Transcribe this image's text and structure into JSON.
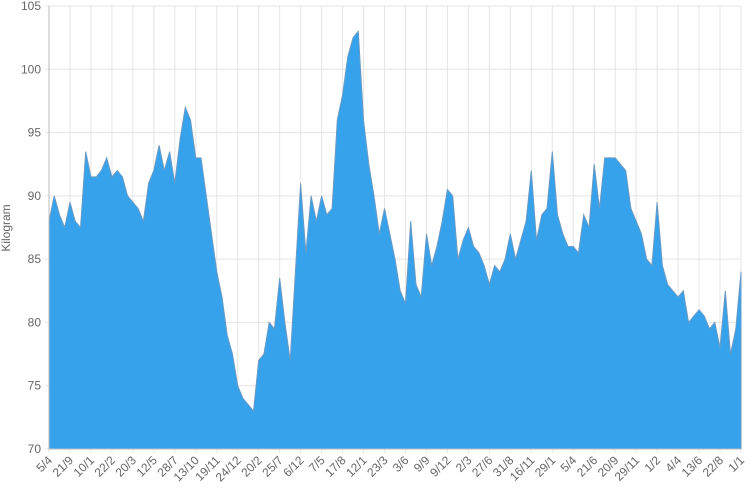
{
  "chart_data": {
    "type": "area",
    "y_label": "Kilogram",
    "categories": [
      "5/4",
      null,
      null,
      null,
      "21/9",
      null,
      null,
      null,
      "10/1",
      null,
      null,
      null,
      "22/2",
      null,
      null,
      null,
      "20/3",
      null,
      null,
      null,
      "12/5",
      null,
      null,
      null,
      "28/7",
      null,
      null,
      null,
      "13/10",
      null,
      null,
      null,
      "19/11",
      null,
      null,
      null,
      "24/12",
      null,
      null,
      null,
      "20/2",
      null,
      null,
      null,
      "25/7",
      null,
      null,
      null,
      "6/12",
      null,
      null,
      null,
      "7/5",
      null,
      null,
      null,
      "17/8",
      null,
      null,
      null,
      "12/1",
      null,
      null,
      null,
      "23/3",
      null,
      null,
      null,
      "3/6",
      null,
      null,
      null,
      "9/9",
      null,
      null,
      null,
      "9/12",
      null,
      null,
      null,
      "2/3",
      null,
      null,
      null,
      "27/6",
      null,
      null,
      null,
      "31/8",
      null,
      null,
      null,
      "16/11",
      null,
      null,
      null,
      "29/1",
      null,
      null,
      null,
      "5/4",
      null,
      null,
      null,
      "21/6",
      null,
      null,
      null,
      "20/9",
      null,
      null,
      null,
      "29/11",
      null,
      null,
      null,
      "1/2",
      null,
      null,
      null,
      "4/4",
      null,
      null,
      null,
      "13/6",
      null,
      null,
      null,
      "22/8",
      null,
      null,
      null,
      "1/1"
    ],
    "values": [
      88,
      90,
      88.5,
      87.5,
      89.5,
      88,
      87.5,
      93.5,
      91.5,
      91.5,
      92,
      93,
      91.5,
      92,
      91.5,
      90,
      89.5,
      89,
      88,
      91,
      92,
      94,
      92,
      93.5,
      91,
      94.5,
      97,
      96,
      93,
      93,
      90,
      87,
      84,
      82,
      79,
      77.5,
      75,
      74,
      73.5,
      73,
      77,
      77.5,
      80,
      79.5,
      83.5,
      80,
      77,
      84,
      91,
      85.5,
      90,
      88,
      90,
      88.5,
      89,
      96,
      98,
      101,
      102.5,
      103,
      96,
      92.5,
      90,
      87,
      89,
      87,
      85,
      82.5,
      81.5,
      88,
      83,
      82,
      87,
      84.5,
      86,
      88,
      90.5,
      90,
      85,
      86.5,
      87.5,
      86,
      85.5,
      84.5,
      83,
      84.5,
      84,
      85,
      87,
      85,
      86.5,
      88,
      92,
      86.5,
      88.5,
      89,
      93.5,
      88.5,
      87,
      86,
      86,
      85.5,
      88.5,
      87.5,
      92.5,
      89,
      93,
      93,
      93,
      92.5,
      92,
      89,
      88,
      87,
      85,
      84.5,
      89.5,
      84.5,
      83,
      82.5,
      82,
      82.5,
      80,
      80.5,
      81,
      80.5,
      79.5,
      80,
      78,
      82.5,
      77.5,
      79.5,
      84
    ],
    "color": "#36a2eb",
    "ylim": [
      70,
      105
    ],
    "yticks": [
      70,
      75,
      80,
      85,
      90,
      95,
      100,
      105
    ],
    "grid": true
  }
}
